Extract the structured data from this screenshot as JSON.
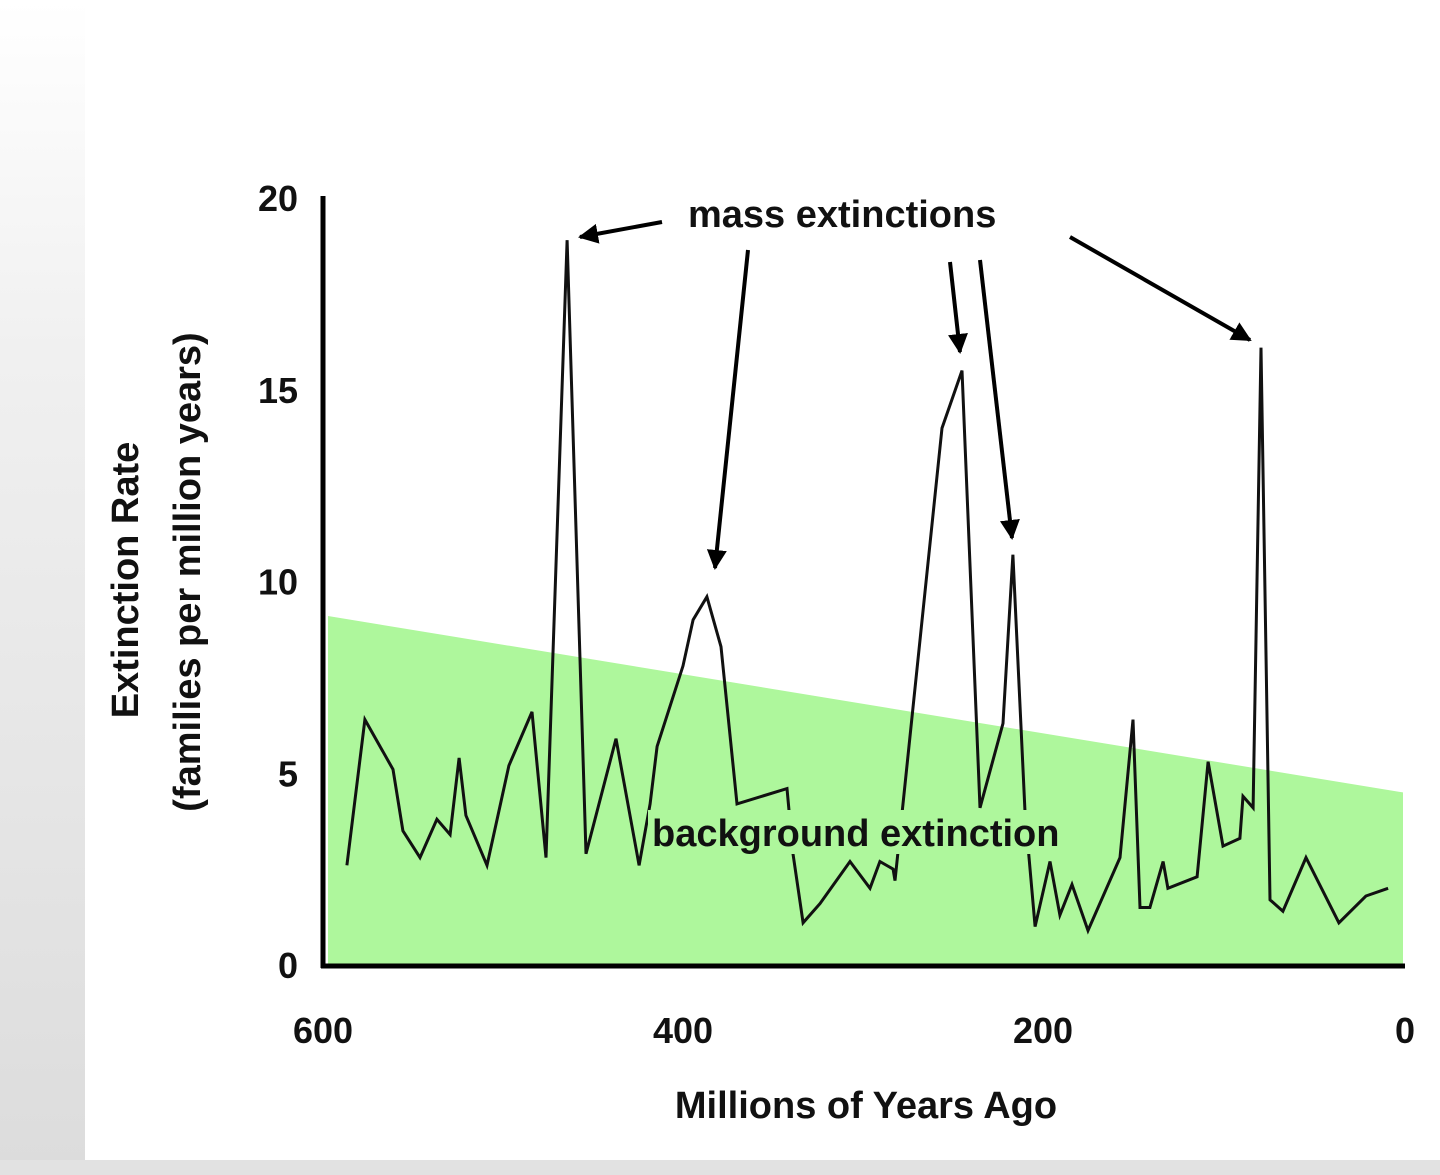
{
  "chart_data": {
    "type": "line",
    "title": "",
    "xlabel": "Millions of Years Ago",
    "ylabel": "Extinction Rate",
    "ylabel_sub": "(families per million years)",
    "xlim": [
      600,
      0
    ],
    "ylim": [
      0,
      20
    ],
    "xticks": [
      "600",
      "400",
      "200",
      "0"
    ],
    "yticks": [
      "0",
      "5",
      "10",
      "15",
      "20"
    ],
    "grid": false,
    "colors": {
      "line": "#111111",
      "background_band": "#aef79c"
    },
    "background_band": {
      "label": "background extinction",
      "x": [
        600,
        0
      ],
      "upper": [
        9.1,
        4.5
      ]
    },
    "annotations": {
      "mass_extinctions": "mass extinctions"
    },
    "series": [
      {
        "x": [
          586.7,
          576.7,
          561.1,
          555.6,
          546.1,
          536.7,
          529.4,
          524.4,
          520.6,
          508.9,
          496.7,
          483.9,
          476.1,
          464.4,
          453.9,
          437.2,
          424.4,
          418.3,
          414.4,
          400,
          394.4,
          386.7,
          378.9,
          370,
          342.2,
          338.9,
          333.3,
          323.9,
          307.2,
          296.1,
          290.6,
          283.3,
          282.2,
          277.8,
          256.1,
          245,
          235,
          222.2,
          216.7,
          210,
          204.4,
          196.1,
          190.6,
          183.9,
          175,
          157.2,
          150,
          146.1,
          140.6,
          133.3,
          130.6,
          114.4,
          108.3,
          100,
          90.6,
          88.9,
          83.3,
          78.9,
          73.9,
          66.7,
          53.9,
          35.6,
          20.6,
          8.3
        ],
        "y": [
          2.6,
          6.4,
          5.1,
          3.5,
          2.8,
          3.8,
          3.4,
          5.4,
          3.9,
          2.6,
          5.2,
          6.6,
          2.8,
          18.9,
          2.9,
          5.9,
          2.6,
          4.2,
          5.7,
          7.8,
          9.0,
          9.6,
          8.3,
          4.2,
          4.6,
          2.9,
          1.1,
          1.6,
          2.7,
          2.0,
          2.7,
          2.5,
          2.2,
          4.2,
          14.0,
          15.5,
          4.1,
          6.3,
          10.7,
          4.0,
          1.0,
          2.7,
          1.3,
          2.1,
          0.9,
          2.8,
          6.4,
          1.5,
          1.5,
          2.7,
          2.0,
          2.3,
          5.3,
          3.1,
          3.3,
          4.4,
          4.1,
          16.1,
          1.7,
          1.4,
          2.8,
          1.1,
          1.8,
          2.0
        ]
      }
    ]
  }
}
